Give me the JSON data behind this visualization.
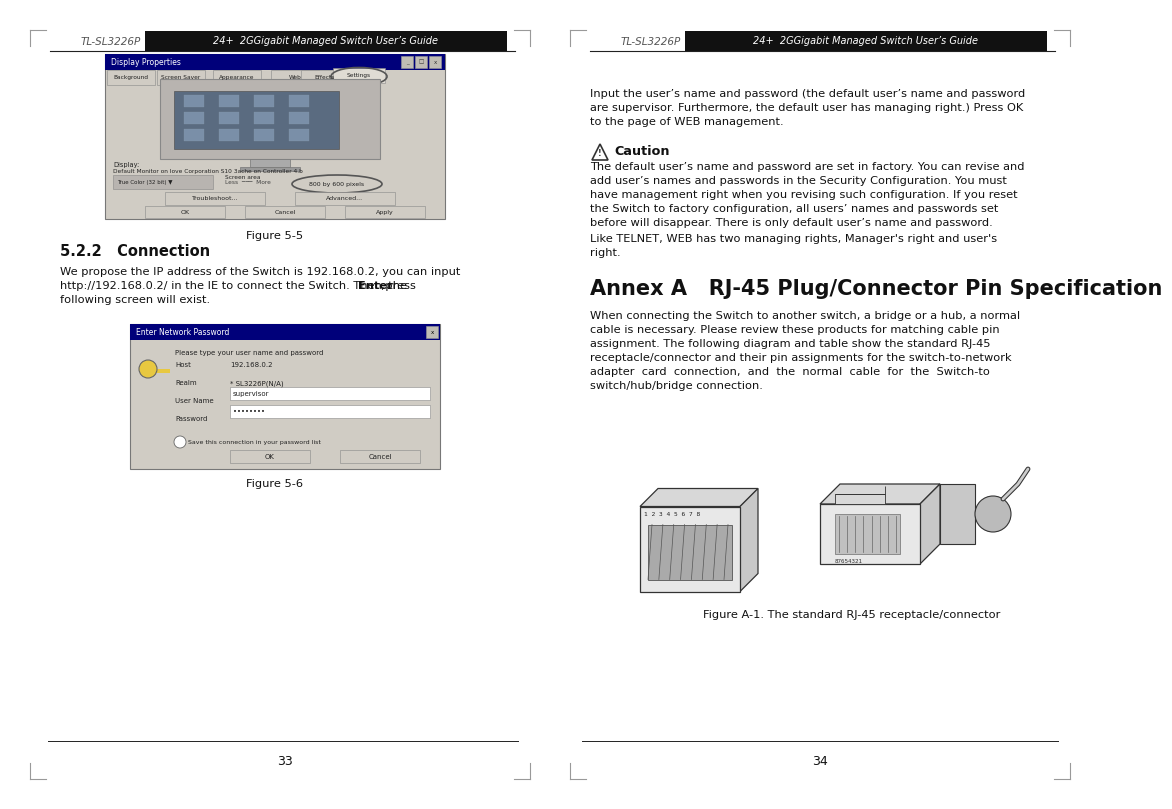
{
  "page_bg": "#ffffff",
  "header_bg": "#111111",
  "header_text_color": "#ffffff",
  "header_left_label": "TL-SL3226P",
  "header_right_label": "24+  2GGigabit Managed Switch User’s Guide",
  "left_page_number": "33",
  "right_page_number": "34",
  "figure55_caption": "Figure 5-5",
  "figure56_caption": "Figure 5-6",
  "figureA1_caption": "Figure A-1. The standard RJ-45 receptacle/connector",
  "section_title": "5.2.2   Connection",
  "annex_title": "Annex A   RJ-45 Plug/Connector Pin Specification",
  "left_body_lines": [
    "We propose the IP address of the Switch is 192.168.0.2, you can input",
    "http://192.168.0.2/ in the IE to connect the Switch. Then press Enter, the",
    "following screen will exist."
  ],
  "right_body1_lines": [
    "Input the user’s name and password (the default user’s name and password",
    "are supervisor. Furthermore, the default user has managing right.) Press OK",
    "to the page of WEB management."
  ],
  "caution_title": "Caution",
  "caution_lines": [
    "The default user’s name and password are set in factory. You can revise and",
    "add user’s names and passwords in the Security Configuration. You must",
    "have management right when you revising such configuration. If you reset",
    "the Switch to factory configuration, all users’ names and passwords set",
    "before will disappear. There is only default user’s name and password."
  ],
  "right_body2_lines": [
    "Like TELNET, WEB has two managing rights, Manager's right and user's",
    "right."
  ],
  "annex_body_lines": [
    "When connecting the Switch to another switch, a bridge or a hub, a normal",
    "cable is necessary. Please review these products for matching cable pin",
    "assignment. The following diagram and table show the standard RJ-45",
    "receptacle/connector and their pin assignments for the switch-to-network",
    "adapter  card  connection,  and  the  normal  cable  for  the  Switch-to",
    "switch/hub/bridge connection."
  ],
  "divider_color": "#222222",
  "text_color": "#111111",
  "gray_mid": "#aaaaaa",
  "gray_light": "#dddddd",
  "gray_dark": "#666666",
  "body_fs": 8.2,
  "header_fs": 7.5,
  "caption_fs": 8.2,
  "section_fs": 10.5,
  "annex_fs": 15.0
}
